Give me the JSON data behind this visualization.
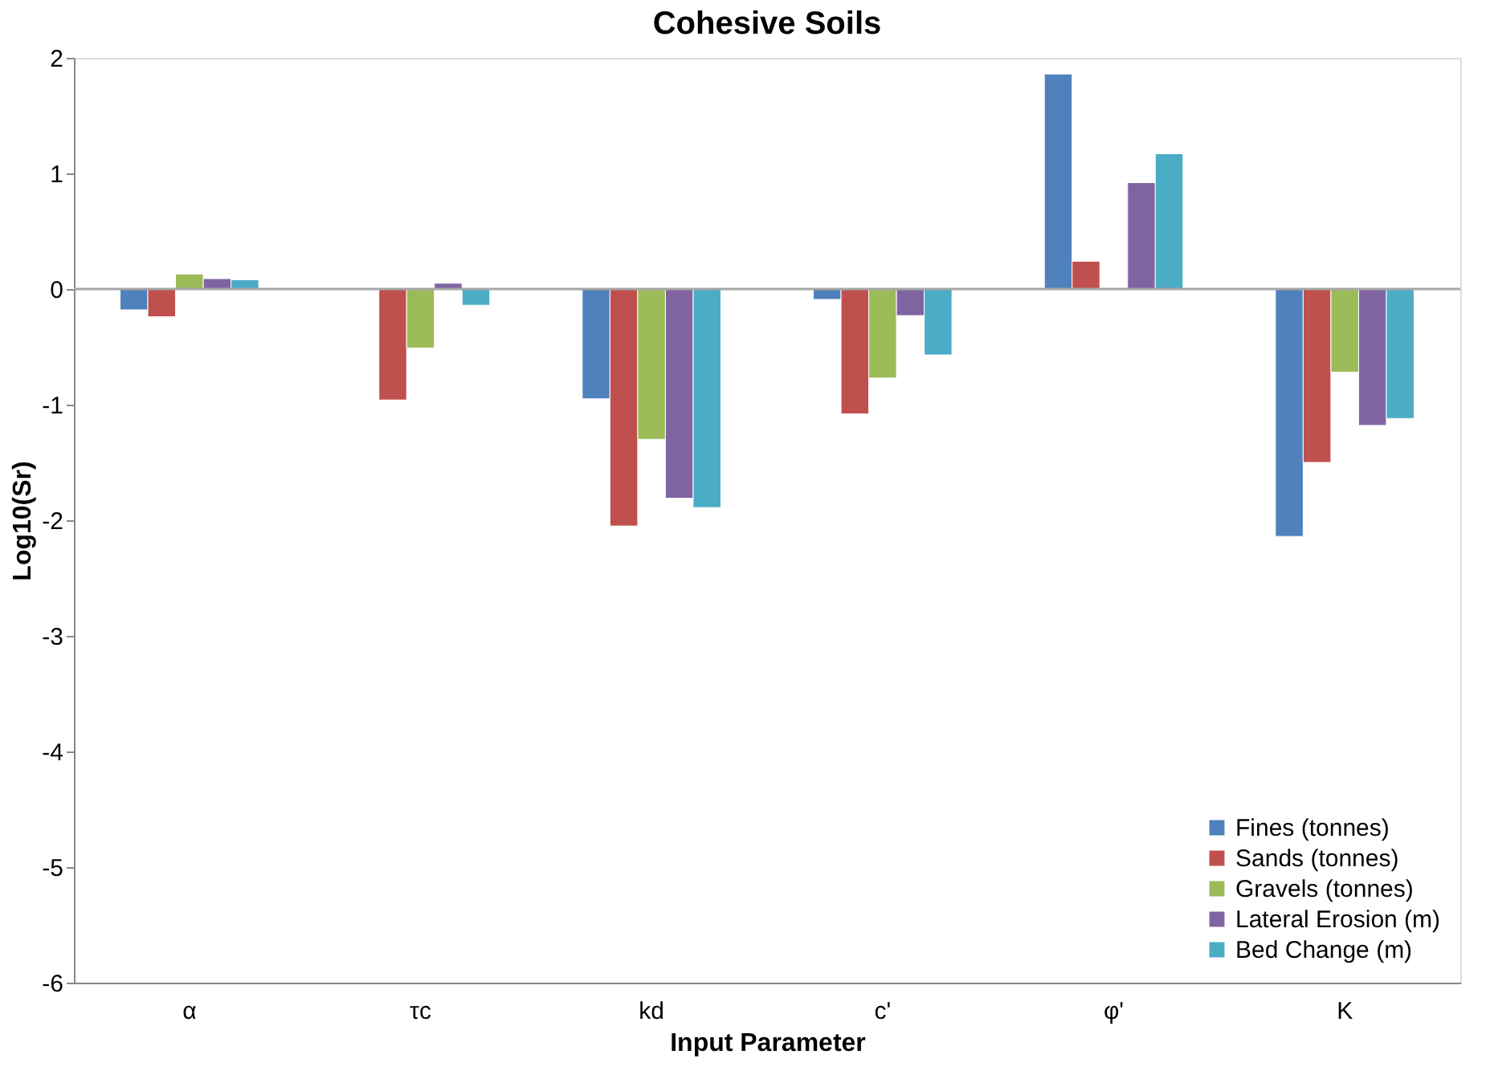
{
  "chart_data": {
    "type": "bar",
    "title": "Cohesive Soils",
    "xlabel": "Input Parameter",
    "ylabel": "Log10(Sr)",
    "categories": [
      "α",
      "τc",
      "kd",
      "c'",
      "φ'",
      "K"
    ],
    "series": [
      {
        "name": "Fines (tonnes)",
        "color": "#4f81bd",
        "values": [
          -0.18,
          null,
          -0.95,
          -0.09,
          1.86,
          -2.14
        ]
      },
      {
        "name": "Sands (tonnes)",
        "color": "#c0504d",
        "values": [
          -0.24,
          -0.96,
          -2.05,
          -1.08,
          0.24,
          -1.5
        ]
      },
      {
        "name": "Gravels (tonnes)",
        "color": "#9bbb59",
        "values": [
          0.13,
          -0.51,
          -1.3,
          -0.77,
          null,
          -0.72
        ]
      },
      {
        "name": "Lateral Erosion (m)",
        "color": "#8064a2",
        "values": [
          0.09,
          0.05,
          -1.81,
          -0.23,
          0.92,
          -1.18
        ]
      },
      {
        "name": "Bed Change (m)",
        "color": "#4bacc6",
        "values": [
          0.08,
          -0.14,
          -1.89,
          -0.57,
          1.17,
          -1.12
        ]
      }
    ],
    "ylim": [
      -6,
      2
    ],
    "yticks": [
      -6,
      -5,
      -4,
      -3,
      -2,
      -1,
      0,
      1,
      2
    ],
    "ref_lines": [
      {
        "axis": "y",
        "value": 0,
        "color": "#a6a6a6"
      }
    ],
    "grid": false,
    "legend": "bottom right"
  }
}
